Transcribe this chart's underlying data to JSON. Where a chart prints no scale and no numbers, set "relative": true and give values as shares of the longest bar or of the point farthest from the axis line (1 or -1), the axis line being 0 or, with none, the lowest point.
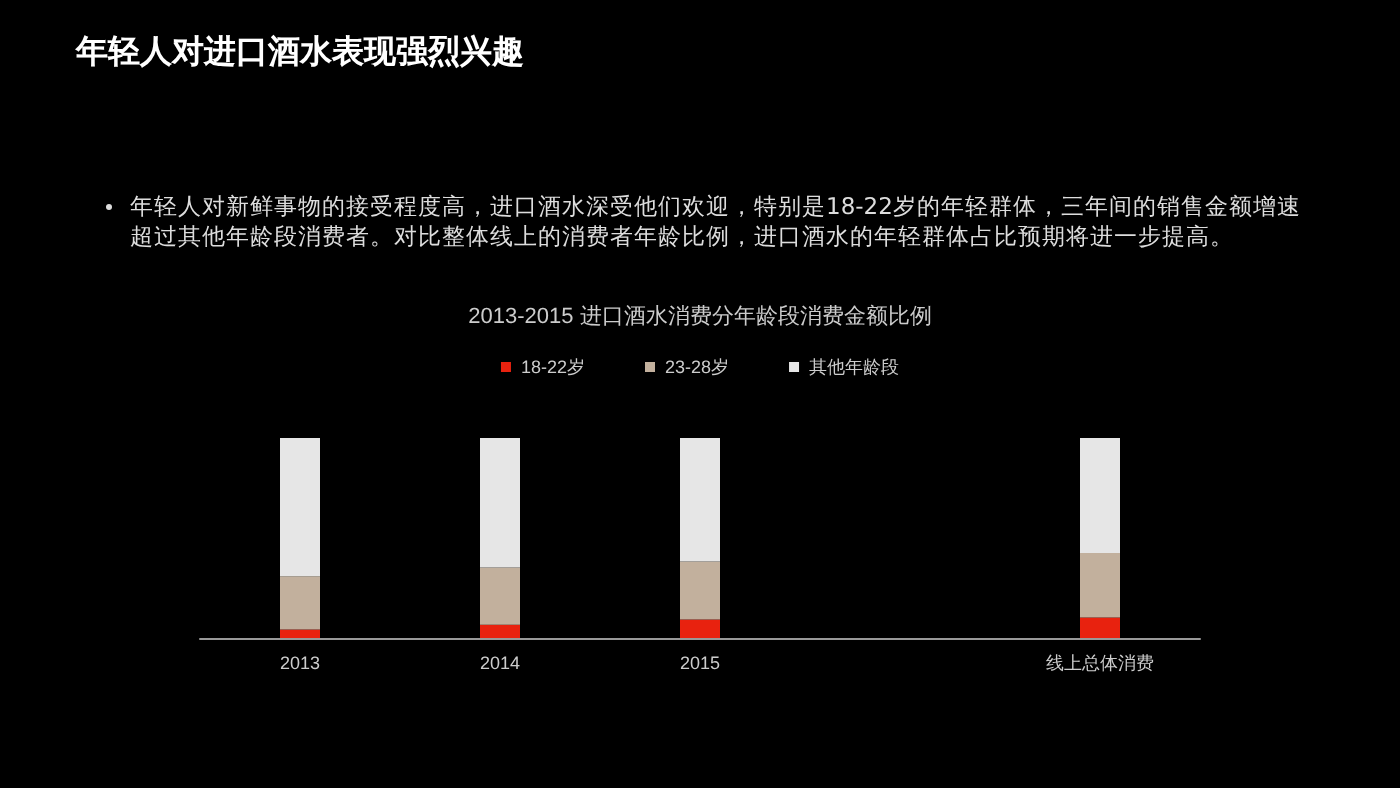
{
  "chart_data": {
    "type": "bar",
    "title": "年轻人对进口酒水表现强烈兴趣",
    "subtitle": "2013-2015 进口酒水消费分年龄段消费金额比例",
    "annotations": [
      "年轻人对新鲜事物的接受程度高，进口酒水深受他们欢迎，特别是18-22岁的年轻群体，三年间的销售金额增速超过其他年龄段消费者。对比整体线上的消费者年龄比例，进口酒水的年轻群体占比预期将进一步提高。"
    ],
    "categories": [
      "2013",
      "2014",
      "2015",
      null,
      "线上总体消费"
    ],
    "relative": true,
    "stacked": true,
    "legend": "top",
    "series": [
      {
        "name": "18-22岁",
        "color": "#e8220f",
        "values": [
          0.043,
          0.066,
          0.093,
          null,
          0.103
        ]
      },
      {
        "name": "23-28岁",
        "color": "#c2b09d",
        "values": [
          0.266,
          0.286,
          0.289,
          null,
          0.322
        ]
      },
      {
        "name": "其他年龄段",
        "color": "#e6e6e6",
        "values": [
          0.691,
          0.648,
          0.618,
          null,
          0.575
        ]
      }
    ]
  }
}
